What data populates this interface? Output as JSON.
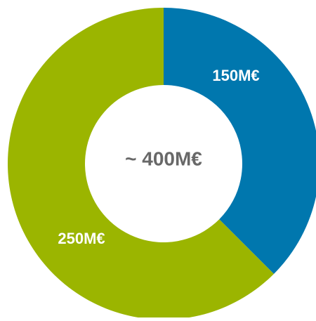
{
  "chart_data": {
    "type": "pie",
    "center_label": "~ 400M€",
    "slices": [
      {
        "label": "150M€",
        "value": 150,
        "color": "#0077ae"
      },
      {
        "label": "250M€",
        "value": 250,
        "color": "#9bb500"
      }
    ]
  },
  "colors": {
    "slice_label_text": "#ffffff",
    "center_label_text": "#686868",
    "background": "#ffffff"
  }
}
